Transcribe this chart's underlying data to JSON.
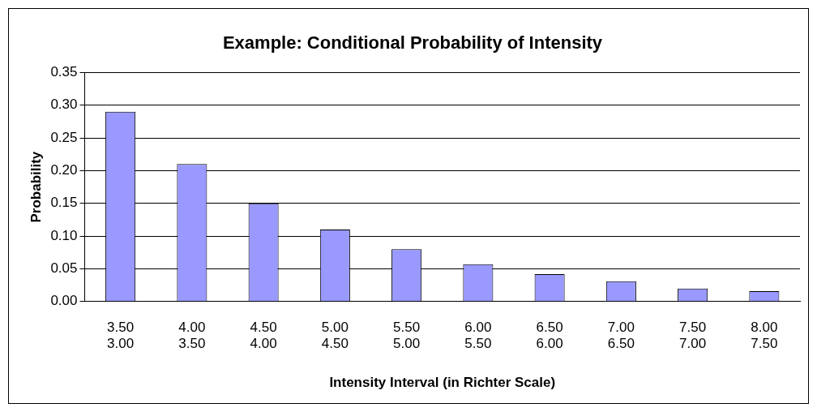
{
  "chart_data": {
    "type": "bar",
    "title": "Example: Conditional Probability of Intensity",
    "xlabel": "Intensity Interval (in Richter Scale)",
    "ylabel": "Probability",
    "categories": [
      "3.50\n3.00",
      "4.00\n3.50",
      "4.50\n4.00",
      "5.00\n4.50",
      "5.50\n5.00",
      "6.00\n5.50",
      "6.50\n6.00",
      "7.00\n6.50",
      "7.50\n7.00",
      "8.00\n7.50"
    ],
    "values": [
      0.29,
      0.21,
      0.15,
      0.11,
      0.08,
      0.057,
      0.042,
      0.031,
      0.02,
      0.016
    ],
    "color": "#9999ff",
    "ylim": [
      0,
      0.35
    ],
    "yticks": [
      {
        "value": 0,
        "label": "0.00"
      },
      {
        "value": 0.05,
        "label": "0.05"
      },
      {
        "value": 0.1,
        "label": "0.10"
      },
      {
        "value": 0.15,
        "label": "0.15"
      },
      {
        "value": 0.2,
        "label": "0.20"
      },
      {
        "value": 0.25,
        "label": "0.25"
      },
      {
        "value": 0.3,
        "label": "0.30"
      },
      {
        "value": 0.35,
        "label": "0.35"
      }
    ],
    "grid": "y",
    "legend": false
  }
}
